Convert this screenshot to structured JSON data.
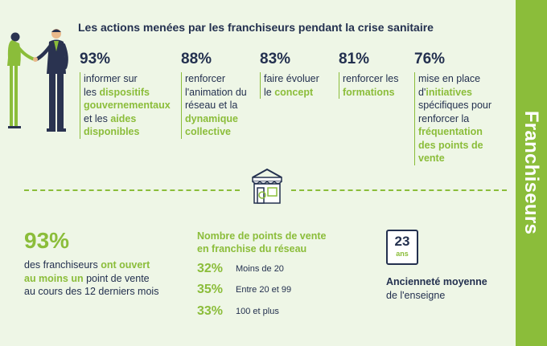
{
  "title": "Les actions menées par les franchiseurs pendant la crise sanitaire",
  "sidebar_label": "Franchiseurs",
  "stats": [
    {
      "pct": "93%",
      "t1": "informer sur",
      "t2": "les ",
      "t3": "dispositifs",
      "t4": "gouvernementaux",
      "t5": "et les ",
      "t6": "aides",
      "t7": "disponibles"
    },
    {
      "pct": "88%",
      "t1": "renforcer",
      "t2": "l'animation du",
      "t3": "réseau et la",
      "t4": "dynamique",
      "t5": "collective"
    },
    {
      "pct": "83%",
      "t1": "faire évoluer",
      "t2": "le ",
      "t3": "concept"
    },
    {
      "pct": "81%",
      "t1": "renforcer les",
      "t2": "formations"
    },
    {
      "pct": "76%",
      "t1": "mise en place",
      "t2": "d'",
      "t3": "initiatives",
      "t4": "spécifiques pour",
      "t5": "renforcer la",
      "t6": "fréquentation",
      "t7": "des points de",
      "t8": "vente"
    }
  ],
  "network": {
    "pct": "93%",
    "t1": "des franchiseurs ",
    "t2": "ont ouvert",
    "t3": "au moins un",
    "t4": " point de vente",
    "t5": "au cours des 12 derniers mois"
  },
  "points_vente": {
    "title_line1": "Nombre de points de vente",
    "title_line2": "en franchise du réseau",
    "rows": [
      {
        "pct": "32%",
        "label": "Moins de 20"
      },
      {
        "pct": "35%",
        "label": "Entre 20 et 99"
      },
      {
        "pct": "33%",
        "label": "100 et plus"
      }
    ]
  },
  "anciennete": {
    "value": "23",
    "unit": "ans",
    "title": "Ancienneté moyenne",
    "subtitle": "de l'enseigne"
  },
  "colors": {
    "green": "#8bbd3a",
    "navy": "#23304f",
    "background": "#eef6e6"
  }
}
